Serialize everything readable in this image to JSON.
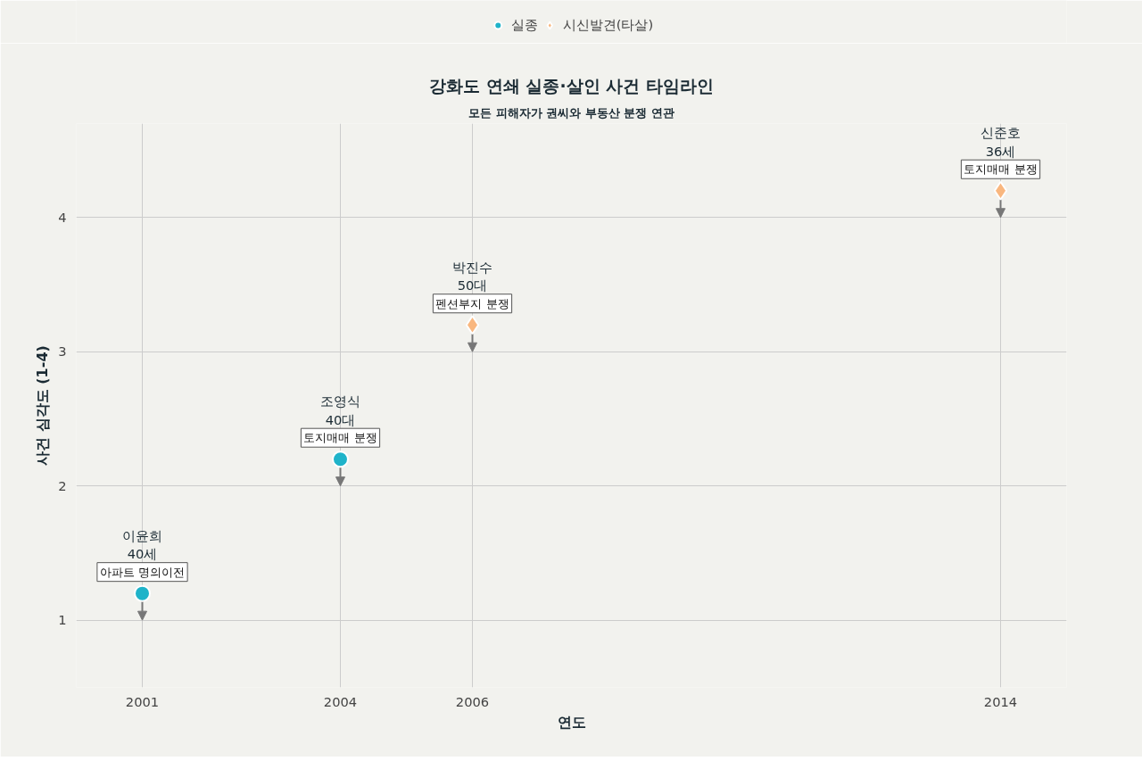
{
  "chart_data": {
    "type": "scatter",
    "title": "강화도 연쇄 실종·살인 사건 타임라인",
    "subtitle": "모든 피해자가 권씨와 부동산 분쟁 연관",
    "xlabel": "연도",
    "ylabel": "사건 심각도 (1-4)",
    "xlim": [
      2000,
      2015
    ],
    "xticks": [
      2001,
      2004,
      2006,
      2014
    ],
    "ylim": [
      0.5,
      4.7
    ],
    "yticks": [
      1,
      2,
      3,
      4
    ],
    "grid": true,
    "legend": "top",
    "series": [
      {
        "name": "실종",
        "color": "#1fb3c9",
        "marker": "circle",
        "x": [
          2001,
          2004
        ],
        "values": [
          1.2,
          2.2
        ]
      },
      {
        "name": "시신발견(타살)",
        "color": "#f9b77f",
        "marker": "diamond",
        "x": [
          2006,
          2014
        ],
        "values": [
          3.2,
          4.2
        ]
      }
    ],
    "annotations": [
      {
        "text": "이윤희\n40세",
        "x": 2001,
        "y": 1.2
      },
      {
        "text": "아파트 명의이전",
        "x": 2001,
        "y": 1.2
      },
      {
        "text": "조영식\n40대",
        "x": 2004,
        "y": 2.2
      },
      {
        "text": "토지매매 분쟁",
        "x": 2004,
        "y": 2.2
      },
      {
        "text": "박진수\n50대",
        "x": 2006,
        "y": 3.2
      },
      {
        "text": "펜션부지 분쟁",
        "x": 2006,
        "y": 3.2
      },
      {
        "text": "신준호\n36세",
        "x": 2014,
        "y": 4.2
      },
      {
        "text": "토지매매 분쟁",
        "x": 2014,
        "y": 4.2
      }
    ]
  }
}
